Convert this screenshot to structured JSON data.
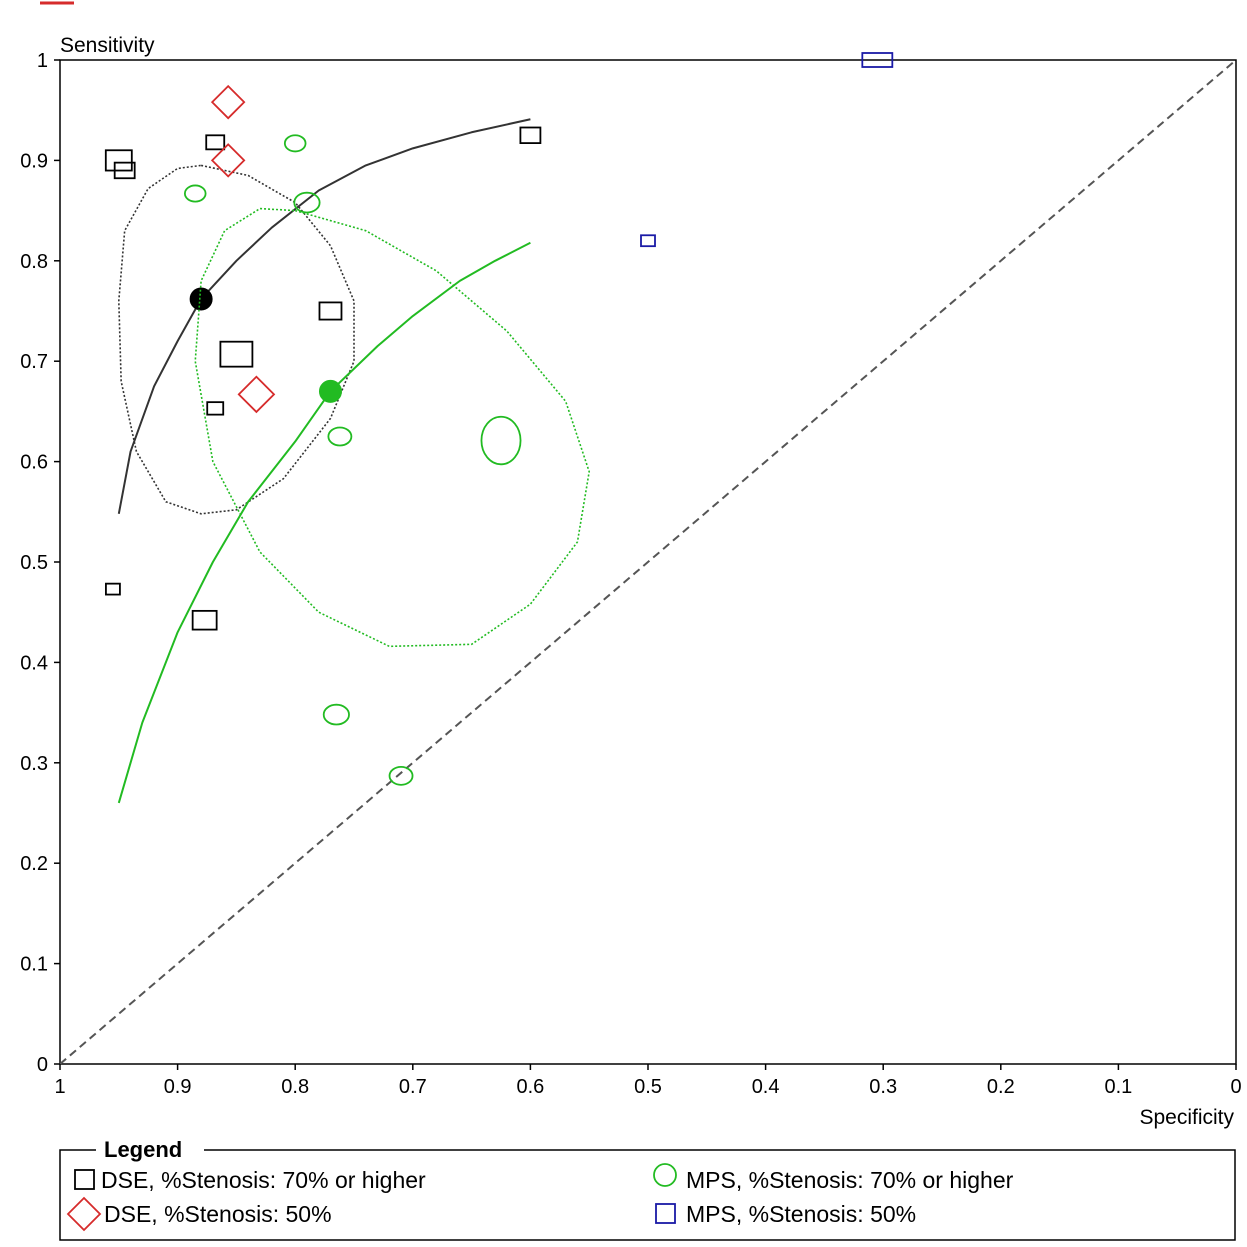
{
  "chart_data": {
    "type": "scatter",
    "title": "",
    "xlabel": "Specificity",
    "ylabel": "Sensitivity",
    "x_reversed": true,
    "xlim": [
      1,
      0
    ],
    "ylim": [
      0,
      1
    ],
    "x_ticks": [
      "1",
      "0.9",
      "0.8",
      "0.7",
      "0.6",
      "0.5",
      "0.4",
      "0.3",
      "0.2",
      "0.1",
      "0"
    ],
    "y_ticks": [
      "0",
      "0.1",
      "0.2",
      "0.3",
      "0.4",
      "0.5",
      "0.6",
      "0.7",
      "0.8",
      "0.9",
      "1"
    ],
    "grid": false,
    "diagonal_reference": true,
    "legend": {
      "title": "Legend",
      "placement": "bottom",
      "entries": [
        "DSE, %Stenosis: 70% or higher",
        "DSE, %Stenosis: 50%",
        "MPS, %Stenosis: 70% or higher",
        "MPS, %Stenosis: 50%"
      ]
    },
    "series": [
      {
        "name": "DSE, %Stenosis: 70% or higher",
        "marker": "square",
        "color": "#000000",
        "points": [
          {
            "spec": 0.95,
            "sens": 0.9,
            "w": 1.3
          },
          {
            "spec": 0.945,
            "sens": 0.89,
            "w": 1.0
          },
          {
            "spec": 0.868,
            "sens": 0.918,
            "w": 0.9
          },
          {
            "spec": 0.6,
            "sens": 0.925,
            "w": 1.0
          },
          {
            "spec": 0.77,
            "sens": 0.75,
            "w": 1.1
          },
          {
            "spec": 0.85,
            "sens": 0.707,
            "w": 1.6
          },
          {
            "spec": 0.868,
            "sens": 0.653,
            "w": 0.8
          },
          {
            "spec": 0.955,
            "sens": 0.473,
            "w": 0.7
          },
          {
            "spec": 0.877,
            "sens": 0.442,
            "w": 1.2
          }
        ],
        "summary_point": {
          "spec": 0.88,
          "sens": 0.762
        },
        "sroc_curve": [
          [
            0.95,
            0.548
          ],
          [
            0.94,
            0.61
          ],
          [
            0.92,
            0.675
          ],
          [
            0.9,
            0.72
          ],
          [
            0.88,
            0.762
          ],
          [
            0.85,
            0.8
          ],
          [
            0.82,
            0.833
          ],
          [
            0.78,
            0.87
          ],
          [
            0.74,
            0.895
          ],
          [
            0.7,
            0.912
          ],
          [
            0.65,
            0.928
          ],
          [
            0.6,
            0.941
          ]
        ],
        "confidence_region": [
          [
            0.88,
            0.895
          ],
          [
            0.84,
            0.885
          ],
          [
            0.8,
            0.858
          ],
          [
            0.77,
            0.815
          ],
          [
            0.75,
            0.76
          ],
          [
            0.75,
            0.7
          ],
          [
            0.77,
            0.643
          ],
          [
            0.81,
            0.583
          ],
          [
            0.85,
            0.552
          ],
          [
            0.88,
            0.548
          ],
          [
            0.91,
            0.56
          ],
          [
            0.935,
            0.61
          ],
          [
            0.948,
            0.68
          ],
          [
            0.95,
            0.76
          ],
          [
            0.945,
            0.83
          ],
          [
            0.925,
            0.872
          ],
          [
            0.9,
            0.892
          ]
        ]
      },
      {
        "name": "DSE, %Stenosis: 50%",
        "marker": "diamond",
        "color": "#d62b2b",
        "points": [
          {
            "spec": 0.857,
            "sens": 0.958,
            "w": 1.0
          },
          {
            "spec": 0.857,
            "sens": 0.9,
            "w": 1.0
          },
          {
            "spec": 0.833,
            "sens": 0.667,
            "w": 1.1
          }
        ]
      },
      {
        "name": "MPS, %Stenosis: 70% or higher",
        "marker": "circle",
        "color": "#22bb22",
        "points": [
          {
            "spec": 0.8,
            "sens": 0.917,
            "w": 0.9
          },
          {
            "spec": 0.885,
            "sens": 0.867,
            "w": 0.9
          },
          {
            "spec": 0.79,
            "sens": 0.858,
            "w": 1.1
          },
          {
            "spec": 0.762,
            "sens": 0.625,
            "w": 1.0
          },
          {
            "spec": 0.625,
            "sens": 0.621,
            "w": 1.7
          },
          {
            "spec": 0.765,
            "sens": 0.348,
            "w": 1.1
          },
          {
            "spec": 0.71,
            "sens": 0.287,
            "w": 1.0
          }
        ],
        "summary_point": {
          "spec": 0.77,
          "sens": 0.67
        },
        "sroc_curve": [
          [
            0.95,
            0.26
          ],
          [
            0.93,
            0.34
          ],
          [
            0.9,
            0.43
          ],
          [
            0.87,
            0.5
          ],
          [
            0.84,
            0.56
          ],
          [
            0.8,
            0.62
          ],
          [
            0.77,
            0.67
          ],
          [
            0.73,
            0.715
          ],
          [
            0.7,
            0.745
          ],
          [
            0.66,
            0.78
          ],
          [
            0.63,
            0.8
          ],
          [
            0.6,
            0.818
          ]
        ],
        "confidence_region": [
          [
            0.8,
            0.85
          ],
          [
            0.74,
            0.83
          ],
          [
            0.68,
            0.79
          ],
          [
            0.62,
            0.73
          ],
          [
            0.57,
            0.66
          ],
          [
            0.55,
            0.59
          ],
          [
            0.56,
            0.52
          ],
          [
            0.6,
            0.458
          ],
          [
            0.65,
            0.418
          ],
          [
            0.72,
            0.416
          ],
          [
            0.78,
            0.45
          ],
          [
            0.83,
            0.51
          ],
          [
            0.87,
            0.6
          ],
          [
            0.885,
            0.7
          ],
          [
            0.88,
            0.78
          ],
          [
            0.86,
            0.83
          ],
          [
            0.83,
            0.852
          ]
        ]
      },
      {
        "name": "MPS, %Stenosis: 50%",
        "marker": "square",
        "color": "#1a1aa6",
        "points": [
          {
            "spec": 0.305,
            "sens": 1.0,
            "w": 1.0,
            "shape": "wide"
          },
          {
            "spec": 0.5,
            "sens": 0.82,
            "w": 0.7
          }
        ]
      }
    ]
  }
}
